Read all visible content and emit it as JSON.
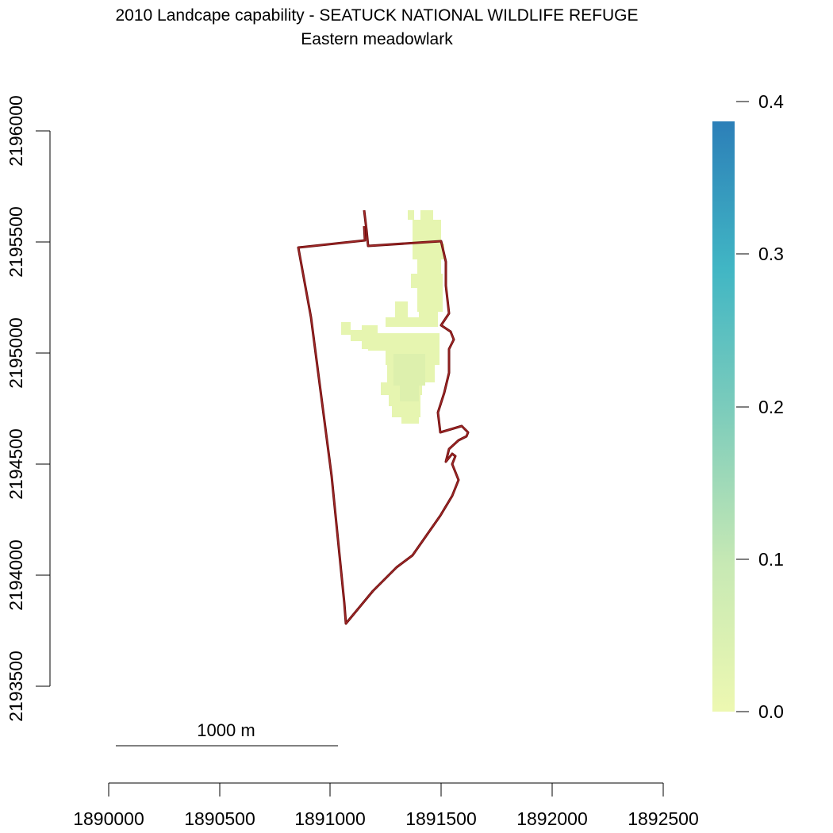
{
  "title": {
    "line1": "2010 Landcape capability - SEATUCK NATIONAL WILDLIFE REFUGE",
    "line2": "Eastern meadowlark"
  },
  "map": {
    "x_ticks": [
      "1890000",
      "1890500",
      "1891000",
      "1891500",
      "1892000",
      "1892500"
    ],
    "y_ticks": [
      "2193500",
      "2194000",
      "2194500",
      "2195000",
      "2195500",
      "2196000"
    ],
    "xlim": [
      1890000,
      1892500
    ],
    "ylim": [
      2193500,
      2196000
    ]
  },
  "legend": {
    "ticks": [
      "0.0",
      "0.1",
      "0.2",
      "0.3",
      "0.4"
    ],
    "range": [
      0,
      0.4
    ],
    "colors": [
      "#edf8b1",
      "#c7e9b4",
      "#7fcdbb",
      "#41b6c4",
      "#2c7fb8"
    ]
  },
  "scalebar": {
    "label": "1000 m"
  },
  "colors": {
    "boundary": "#8b1a1a",
    "habitat_fill": "#e6f5b0"
  }
}
